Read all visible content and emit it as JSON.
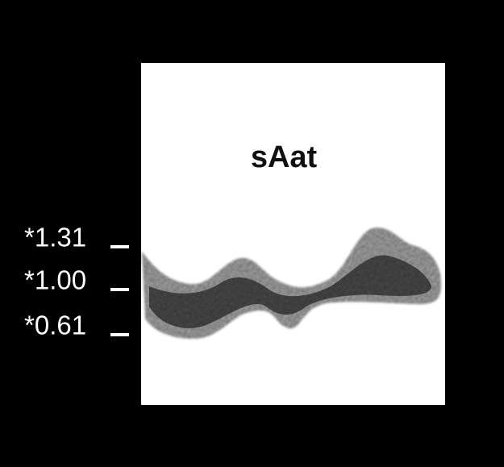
{
  "title": "sAat",
  "markers": [
    "*1.31",
    "*1.00",
    "*0.61"
  ]
}
